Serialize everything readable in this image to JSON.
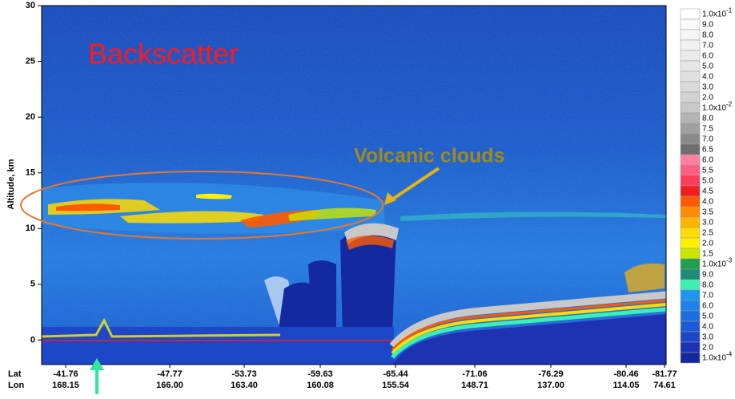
{
  "chart_data": {
    "type": "heatmap",
    "annotations": [
      "Backscatter",
      "Volcanic clouds"
    ],
    "y_label": "Altitude, km",
    "ylim": [
      -2.2,
      30
    ],
    "yticks": [
      0,
      5,
      10,
      15,
      20,
      25,
      30
    ],
    "x_row_labels": [
      "Lat",
      "Lon"
    ],
    "lat": [
      "-41.76",
      "-47.77",
      "-53.73",
      "-59.63",
      "-65.44",
      "-71.06",
      "-76.29",
      "-80.46",
      "-81.77"
    ],
    "lon": [
      "168.15",
      "166.00",
      "163.40",
      "160.08",
      "155.54",
      "148.71",
      "137.00",
      "114.05",
      "74.61"
    ],
    "colorbar": [
      {
        "label": "1.0x10",
        "exp": "-1",
        "color": "#ffffff"
      },
      {
        "label": "9.0",
        "color": "#fafafa"
      },
      {
        "label": "8.0",
        "color": "#f5f5f5"
      },
      {
        "label": "7.0",
        "color": "#f0f0f0"
      },
      {
        "label": "6.0",
        "color": "#ebebeb"
      },
      {
        "label": "5.0",
        "color": "#e6e6e6"
      },
      {
        "label": "4.0",
        "color": "#e0e0e0"
      },
      {
        "label": "3.0",
        "color": "#dadada"
      },
      {
        "label": "2.0",
        "color": "#d3d3d3"
      },
      {
        "label": "1.0x10",
        "exp": "-2",
        "color": "#c8c8c8"
      },
      {
        "label": "8.0",
        "color": "#b4b4b4"
      },
      {
        "label": "7.5",
        "color": "#a0a0a0"
      },
      {
        "label": "7.0",
        "color": "#8a8a8a"
      },
      {
        "label": "6.5",
        "color": "#6e6e6e"
      },
      {
        "label": "6.0",
        "color": "#ff7fa0"
      },
      {
        "label": "5.5",
        "color": "#ff5f84"
      },
      {
        "label": "5.0",
        "color": "#ff3c5a"
      },
      {
        "label": "4.5",
        "color": "#f01e1e"
      },
      {
        "label": "4.0",
        "color": "#ff5a00"
      },
      {
        "label": "3.5",
        "color": "#ff8c00"
      },
      {
        "label": "3.0",
        "color": "#ffb400"
      },
      {
        "label": "2.5",
        "color": "#ffdc00"
      },
      {
        "label": "2.0",
        "color": "#fff000"
      },
      {
        "label": "1.5",
        "color": "#c8e600"
      },
      {
        "label": "1.0x10",
        "exp": "-3",
        "color": "#1ea050"
      },
      {
        "label": "9.0",
        "color": "#1e8c78"
      },
      {
        "label": "8.0",
        "color": "#3cf0b4"
      },
      {
        "label": "7.0",
        "color": "#1e96f0"
      },
      {
        "label": "6.0",
        "color": "#1e82eb"
      },
      {
        "label": "5.0",
        "color": "#1e6ee1"
      },
      {
        "label": "4.0",
        "color": "#1e5ad7"
      },
      {
        "label": "3.0",
        "color": "#1e46c8"
      },
      {
        "label": "2.0",
        "color": "#1e32b4"
      },
      {
        "label": "1.0x10",
        "exp": "-4",
        "color": "#1428a0"
      }
    ]
  }
}
